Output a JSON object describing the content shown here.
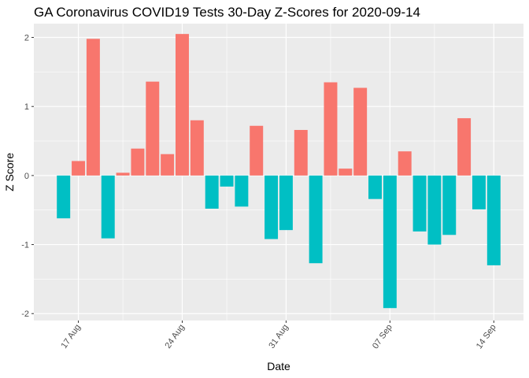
{
  "chart_data": {
    "type": "bar",
    "title": "GA Coronavirus COVID19 Tests 30-Day Z-Scores for 2020-09-14",
    "xlabel": "Date",
    "ylabel": "Z Score",
    "ylim": [
      -2.1,
      2.2
    ],
    "y_ticks": [
      {
        "value": 2,
        "label": "2"
      },
      {
        "value": 1,
        "label": "1"
      },
      {
        "value": 0,
        "label": "0"
      },
      {
        "value": -1,
        "label": "-1"
      },
      {
        "value": -2,
        "label": "-2"
      }
    ],
    "x_ticks": [
      {
        "date": "2020-08-17",
        "label": "17 Aug"
      },
      {
        "date": "2020-08-24",
        "label": "24 Aug"
      },
      {
        "date": "2020-08-31",
        "label": "31 Aug"
      },
      {
        "date": "2020-09-07",
        "label": "07 Sep"
      },
      {
        "date": "2020-09-14",
        "label": "14 Sep"
      }
    ],
    "x_range": [
      "2020-08-14",
      "2020-09-16"
    ],
    "grid": true,
    "legend": "none",
    "colors": {
      "positive": "#F8766D",
      "negative": "#00BFC4",
      "panel": "#EBEBEB",
      "grid": "#FFFFFF"
    },
    "dates": [
      "2020-08-16",
      "2020-08-17",
      "2020-08-18",
      "2020-08-19",
      "2020-08-20",
      "2020-08-21",
      "2020-08-22",
      "2020-08-23",
      "2020-08-24",
      "2020-08-25",
      "2020-08-26",
      "2020-08-27",
      "2020-08-28",
      "2020-08-29",
      "2020-08-30",
      "2020-08-31",
      "2020-09-01",
      "2020-09-02",
      "2020-09-03",
      "2020-09-04",
      "2020-09-05",
      "2020-09-06",
      "2020-09-07",
      "2020-09-08",
      "2020-09-09",
      "2020-09-10",
      "2020-09-11",
      "2020-09-12",
      "2020-09-13",
      "2020-09-14"
    ],
    "values": [
      -0.62,
      0.21,
      1.98,
      -0.91,
      0.04,
      0.39,
      1.36,
      0.31,
      2.05,
      0.8,
      -0.48,
      -0.16,
      -0.45,
      0.72,
      -0.92,
      -0.79,
      0.66,
      -1.27,
      1.35,
      0.1,
      1.27,
      -0.34,
      -1.92,
      0.35,
      -0.81,
      -1.0,
      -0.86,
      0.83,
      -0.49,
      -1.3
    ]
  }
}
